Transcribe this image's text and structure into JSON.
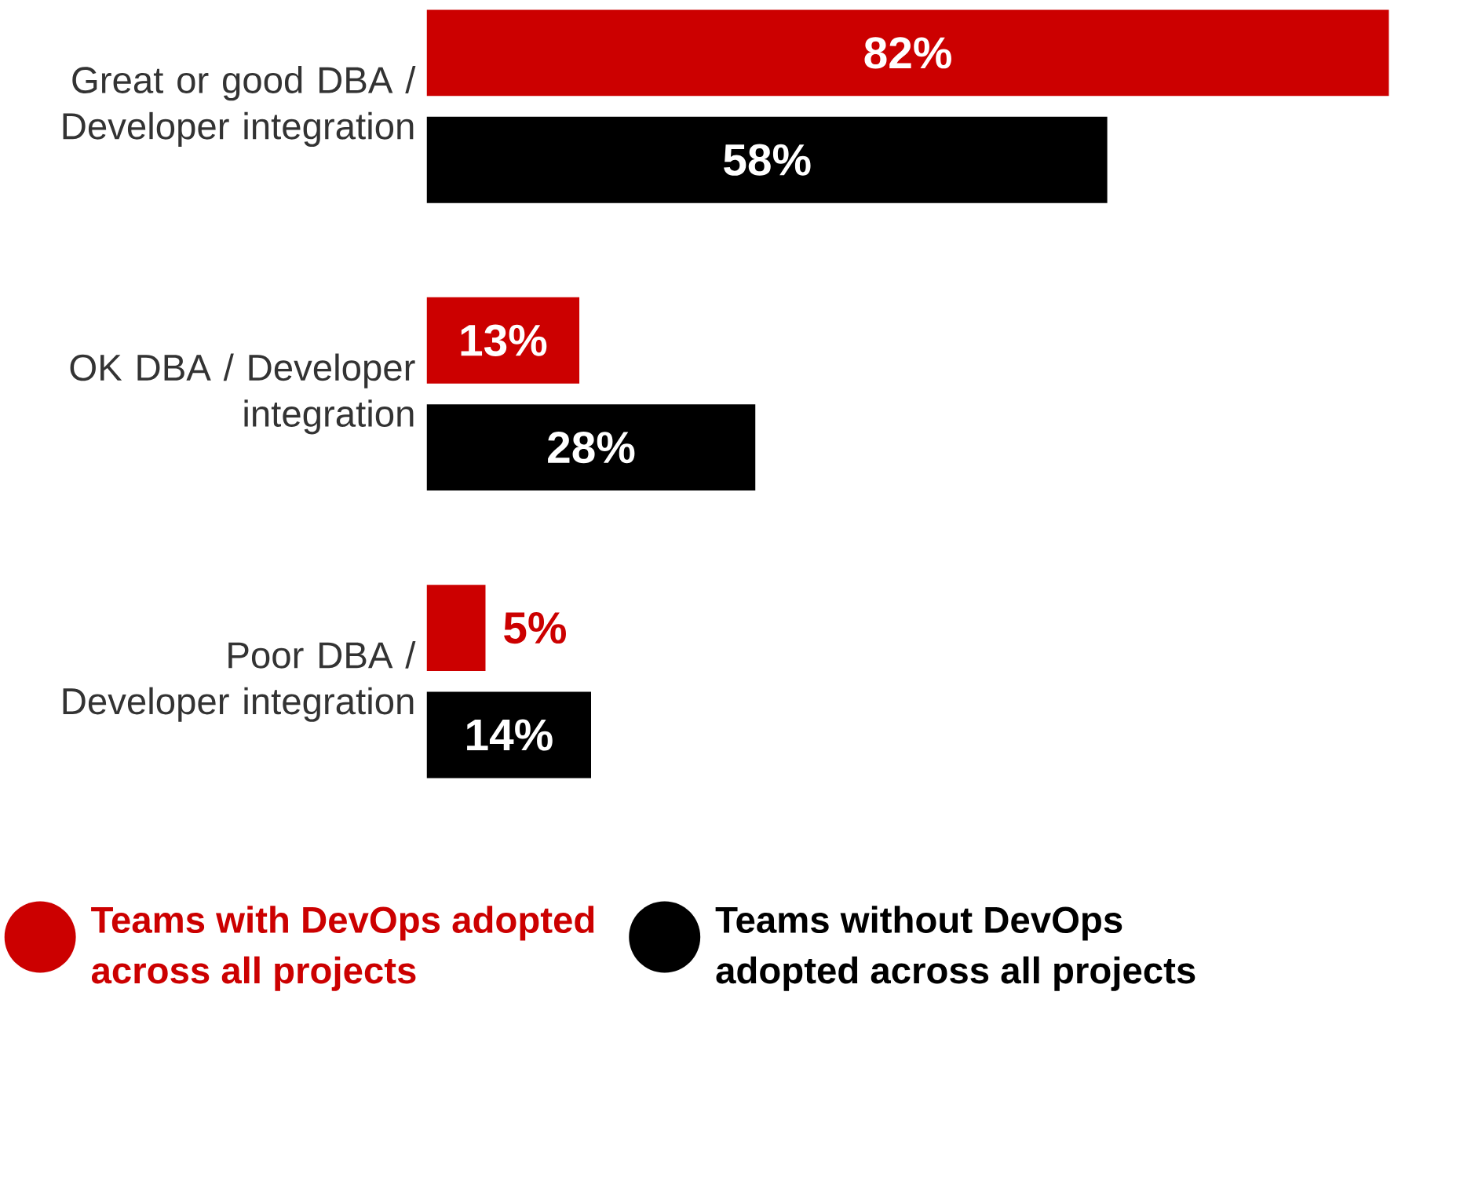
{
  "chart_data": {
    "type": "bar",
    "orientation": "horizontal",
    "categories": [
      "Great or good DBA / Developer integration",
      "OK DBA / Developer integration",
      "Poor DBA / Developer integration"
    ],
    "series": [
      {
        "name": "Teams with DevOps adopted across all projects",
        "color": "#cc0000",
        "values": [
          82,
          13,
          5
        ],
        "value_labels": [
          "82%",
          "13%",
          "5%"
        ]
      },
      {
        "name": "Teams without DevOps adopted across all projects",
        "color": "#000000",
        "values": [
          58,
          28,
          14
        ],
        "value_labels": [
          "58%",
          "28%",
          "14%"
        ]
      }
    ],
    "legend": "bottom"
  }
}
